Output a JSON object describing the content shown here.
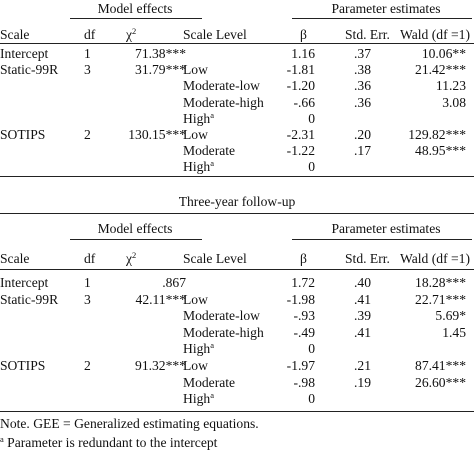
{
  "header": {
    "model_effects": "Model effects",
    "parameter_estimates": "Parameter estimates",
    "columns": {
      "scale": "Scale",
      "df": "df",
      "chi_base": "χ",
      "chi_exp": "2",
      "scale_level": "Scale Level",
      "beta": "β",
      "std_err": "Std. Err.",
      "wald": "Wald (df =1)"
    }
  },
  "section1": {
    "rows": [
      {
        "scale": "Intercept",
        "df": "1",
        "chi": "71.38***",
        "level": "",
        "level_sup": "",
        "beta": "1.16",
        "se": ".37",
        "wald": "10.06**"
      },
      {
        "scale": "Static-99R",
        "df": "3",
        "chi": "31.79***",
        "level": "Low",
        "level_sup": "",
        "beta": "-1.81",
        "se": ".38",
        "wald": "21.42***"
      },
      {
        "scale": "",
        "df": "",
        "chi": "",
        "level": "Moderate-low",
        "level_sup": "",
        "beta": "-1.20",
        "se": ".36",
        "wald": "11.23"
      },
      {
        "scale": "",
        "df": "",
        "chi": "",
        "level": "Moderate-high",
        "level_sup": "",
        "beta": "-.66",
        "se": ".36",
        "wald": "3.08"
      },
      {
        "scale": "",
        "df": "",
        "chi": "",
        "level": "High",
        "level_sup": "a",
        "beta": "0",
        "se": "",
        "wald": ""
      },
      {
        "scale": "SOTIPS",
        "df": "2",
        "chi": "130.15***",
        "level": "Low",
        "level_sup": "",
        "beta": "-2.31",
        "se": ".20",
        "wald": "129.82***"
      },
      {
        "scale": "",
        "df": "",
        "chi": "",
        "level": "Moderate",
        "level_sup": "",
        "beta": "-1.22",
        "se": ".17",
        "wald": "48.95***"
      },
      {
        "scale": "",
        "df": "",
        "chi": "",
        "level": "High",
        "level_sup": "a",
        "beta": "0",
        "se": "",
        "wald": ""
      }
    ]
  },
  "section2": {
    "caption": "Three-year follow-up",
    "rows": [
      {
        "scale": "Intercept",
        "df": "1",
        "chi": ".867",
        "level": "",
        "level_sup": "",
        "beta": "1.72",
        "se": ".40",
        "wald": "18.28***"
      },
      {
        "scale": "Static-99R",
        "df": "3",
        "chi": "42.11***",
        "level": "Low",
        "level_sup": "",
        "beta": "-1.98",
        "se": ".41",
        "wald": "22.71***"
      },
      {
        "scale": "",
        "df": "",
        "chi": "",
        "level": "Moderate-low",
        "level_sup": "",
        "beta": "-.93",
        "se": ".39",
        "wald": "5.69*"
      },
      {
        "scale": "",
        "df": "",
        "chi": "",
        "level": "Moderate-high",
        "level_sup": "",
        "beta": "-.49",
        "se": ".41",
        "wald": "1.45"
      },
      {
        "scale": "",
        "df": "",
        "chi": "",
        "level": "High",
        "level_sup": "a",
        "beta": "0",
        "se": "",
        "wald": ""
      },
      {
        "scale": "SOTIPS",
        "df": "2",
        "chi": "91.32***",
        "level": "Low",
        "level_sup": "",
        "beta": "-1.97",
        "se": ".21",
        "wald": "87.41***"
      },
      {
        "scale": "",
        "df": "",
        "chi": "",
        "level": "Moderate",
        "level_sup": "",
        "beta": "-.98",
        "se": ".19",
        "wald": "26.60***"
      },
      {
        "scale": "",
        "df": "",
        "chi": "",
        "level": "High",
        "level_sup": "a",
        "beta": "0",
        "se": "",
        "wald": ""
      }
    ]
  },
  "notes": {
    "note": "Note. GEE = Generalized estimating equations.",
    "footnote_mark": "a",
    "footnote": " Parameter is redundant to the intercept"
  }
}
